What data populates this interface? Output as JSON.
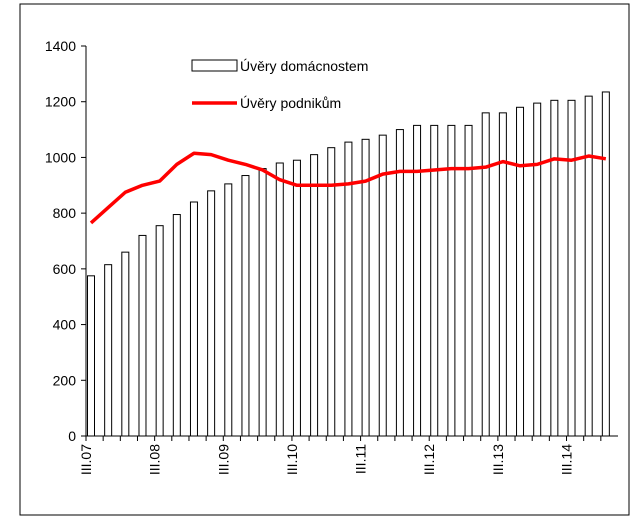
{
  "chart_data": {
    "type": "bar_line",
    "categories": [
      "III.07",
      null,
      null,
      null,
      "III.08",
      null,
      null,
      null,
      "III.09",
      null,
      null,
      null,
      "III.10",
      null,
      null,
      null,
      "III.11",
      null,
      null,
      null,
      "III.12",
      null,
      null,
      null,
      "III.13",
      null,
      null,
      null,
      "III.14",
      null,
      null
    ],
    "series": [
      {
        "name": "Úvěry domácnostem",
        "type": "bar",
        "color": "#ffffff",
        "values": [
          575,
          615,
          660,
          720,
          755,
          795,
          840,
          880,
          905,
          935,
          960,
          980,
          990,
          1010,
          1035,
          1055,
          1065,
          1080,
          1100,
          1115,
          1115,
          1115,
          1115,
          1160,
          1160,
          1180,
          1195,
          1205,
          1205,
          1220,
          1235
        ]
      },
      {
        "name": "Úvěry podnikům",
        "type": "line",
        "color": "#ff0000",
        "values": [
          765,
          820,
          875,
          900,
          915,
          975,
          1015,
          1010,
          990,
          975,
          955,
          920,
          900,
          900,
          900,
          905,
          915,
          940,
          950,
          950,
          955,
          960,
          960,
          965,
          985,
          970,
          975,
          995,
          990,
          1005,
          995
        ]
      }
    ],
    "ylim": [
      0,
      1400
    ],
    "yticks": [
      0,
      200,
      400,
      600,
      800,
      1000,
      1200,
      1400
    ]
  }
}
